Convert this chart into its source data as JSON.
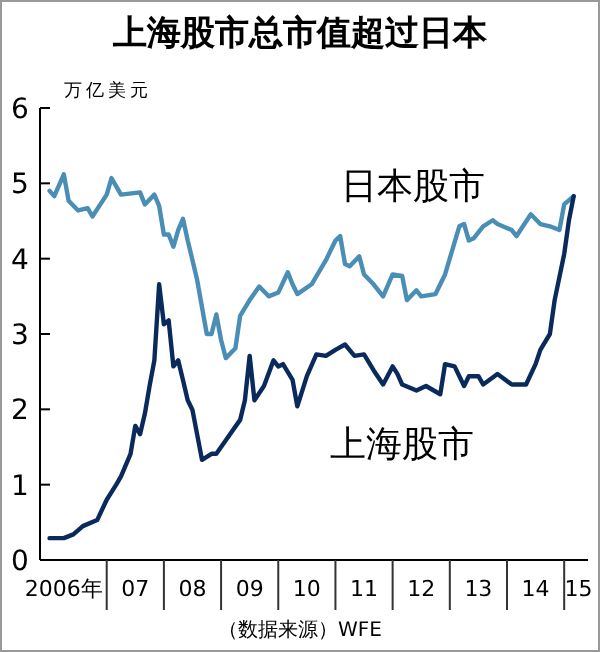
{
  "chart_data": {
    "type": "line",
    "title": "上海股市总市值超过日本",
    "ylabel": "万亿美元",
    "xlim": [
      "2005-11",
      "2015-06"
    ],
    "ylim": [
      0,
      6
    ],
    "yticks": [
      0,
      1,
      2,
      3,
      4,
      5,
      6
    ],
    "xticks": [
      {
        "value": "2006-04",
        "label": "2006年"
      },
      {
        "value": "2007",
        "label": null
      },
      {
        "value": "2007-07",
        "label": "07"
      },
      {
        "value": "2008",
        "label": null
      },
      {
        "value": "2008-07",
        "label": "08"
      },
      {
        "value": "2009",
        "label": null
      },
      {
        "value": "2009-07",
        "label": "09"
      },
      {
        "value": "2010",
        "label": null
      },
      {
        "value": "2010-07",
        "label": "10"
      },
      {
        "value": "2011",
        "label": null
      },
      {
        "value": "2011-07",
        "label": "11"
      },
      {
        "value": "2012",
        "label": null
      },
      {
        "value": "2012-07",
        "label": "12"
      },
      {
        "value": "2013",
        "label": null
      },
      {
        "value": "2013-07",
        "label": "13"
      },
      {
        "value": "2014",
        "label": null
      },
      {
        "value": "2014-07",
        "label": "14"
      },
      {
        "value": "2015",
        "label": null
      },
      {
        "value": "2015-04",
        "label": "15"
      }
    ],
    "grid": false,
    "legend": false,
    "annotations": [
      "（数据来源）WFE"
    ],
    "series": [
      {
        "name": "日本股市",
        "color": "#4a8db5",
        "x": [
          "2006-01",
          "2006-02",
          "2006-04",
          "2006-05",
          "2006-07",
          "2006-09",
          "2006-10",
          "2007-01",
          "2007-02",
          "2007-04",
          "2007-08",
          "2007-09",
          "2007-11",
          "2007-12",
          "2008-01",
          "2008-02",
          "2008-03",
          "2008-04",
          "2008-05",
          "2008-06",
          "2008-07",
          "2008-08",
          "2008-10",
          "2008-11",
          "2008-12",
          "2009-01",
          "2009-02",
          "2009-04",
          "2009-05",
          "2009-07",
          "2009-09",
          "2009-11",
          "2010-01",
          "2010-03",
          "2010-04",
          "2010-05",
          "2010-08",
          "2010-11",
          "2011-01",
          "2011-02",
          "2011-03",
          "2011-04",
          "2011-06",
          "2011-07",
          "2011-09",
          "2011-11",
          "2012-01",
          "2012-03",
          "2012-04",
          "2012-06",
          "2012-07",
          "2012-10",
          "2012-12",
          "2013-03",
          "2013-04",
          "2013-05",
          "2013-06",
          "2013-08",
          "2013-10",
          "2013-11",
          "2014-02",
          "2014-03",
          "2014-06",
          "2014-08",
          "2014-10",
          "2014-12",
          "2015-01",
          "2015-03"
        ],
        "values": [
          4.9,
          4.83,
          5.12,
          4.77,
          4.64,
          4.67,
          4.56,
          4.85,
          5.07,
          4.85,
          4.88,
          4.72,
          4.85,
          4.7,
          4.32,
          4.32,
          4.16,
          4.38,
          4.53,
          4.24,
          3.98,
          3.71,
          3.0,
          3.0,
          3.26,
          2.92,
          2.68,
          2.81,
          3.24,
          3.45,
          3.63,
          3.5,
          3.55,
          3.82,
          3.66,
          3.53,
          3.66,
          3.98,
          4.24,
          4.3,
          3.93,
          3.9,
          4.03,
          3.79,
          3.66,
          3.5,
          3.79,
          3.77,
          3.45,
          3.58,
          3.5,
          3.53,
          3.79,
          4.43,
          4.46,
          4.24,
          4.27,
          4.43,
          4.51,
          4.46,
          4.38,
          4.3,
          4.59,
          4.46,
          4.43,
          4.38,
          4.72,
          4.83
        ]
      },
      {
        "name": "上海股市",
        "color": "#0b2a5c",
        "x": [
          "2006-01",
          "2006-04",
          "2006-06",
          "2006-08",
          "2006-11",
          "2007-01",
          "2007-03",
          "2007-04",
          "2007-06",
          "2007-07",
          "2007-08",
          "2007-09",
          "2007-10",
          "2007-11",
          "2007-12",
          "2008-01",
          "2008-02",
          "2008-03",
          "2008-04",
          "2008-05",
          "2008-06",
          "2008-07",
          "2008-09",
          "2008-11",
          "2008-12",
          "2009-02",
          "2009-05",
          "2009-06",
          "2009-07",
          "2009-08",
          "2009-10",
          "2009-12",
          "2010-01",
          "2010-02",
          "2010-04",
          "2010-05",
          "2010-07",
          "2010-09",
          "2010-11",
          "2011-01",
          "2011-03",
          "2011-05",
          "2011-07",
          "2011-09",
          "2011-11",
          "2012-01",
          "2012-02",
          "2012-03",
          "2012-06",
          "2012-08",
          "2012-11",
          "2012-12",
          "2013-02",
          "2013-04",
          "2013-05",
          "2013-07",
          "2013-08",
          "2013-11",
          "2014-02",
          "2014-05",
          "2014-07",
          "2014-08",
          "2014-10",
          "2014-11",
          "2015-01",
          "2015-02",
          "2015-03"
        ],
        "values": [
          0.29,
          0.29,
          0.34,
          0.45,
          0.53,
          0.8,
          1.0,
          1.11,
          1.41,
          1.78,
          1.67,
          1.94,
          2.31,
          2.65,
          3.66,
          3.13,
          3.18,
          2.57,
          2.65,
          2.39,
          2.12,
          1.99,
          1.33,
          1.41,
          1.41,
          1.59,
          1.86,
          2.12,
          2.71,
          2.12,
          2.31,
          2.65,
          2.57,
          2.6,
          2.39,
          2.04,
          2.44,
          2.73,
          2.71,
          2.79,
          2.86,
          2.71,
          2.73,
          2.52,
          2.33,
          2.57,
          2.47,
          2.33,
          2.25,
          2.31,
          2.2,
          2.6,
          2.57,
          2.31,
          2.44,
          2.44,
          2.33,
          2.47,
          2.33,
          2.33,
          2.6,
          2.79,
          3.0,
          3.45,
          4.06,
          4.51,
          4.83
        ]
      }
    ]
  }
}
